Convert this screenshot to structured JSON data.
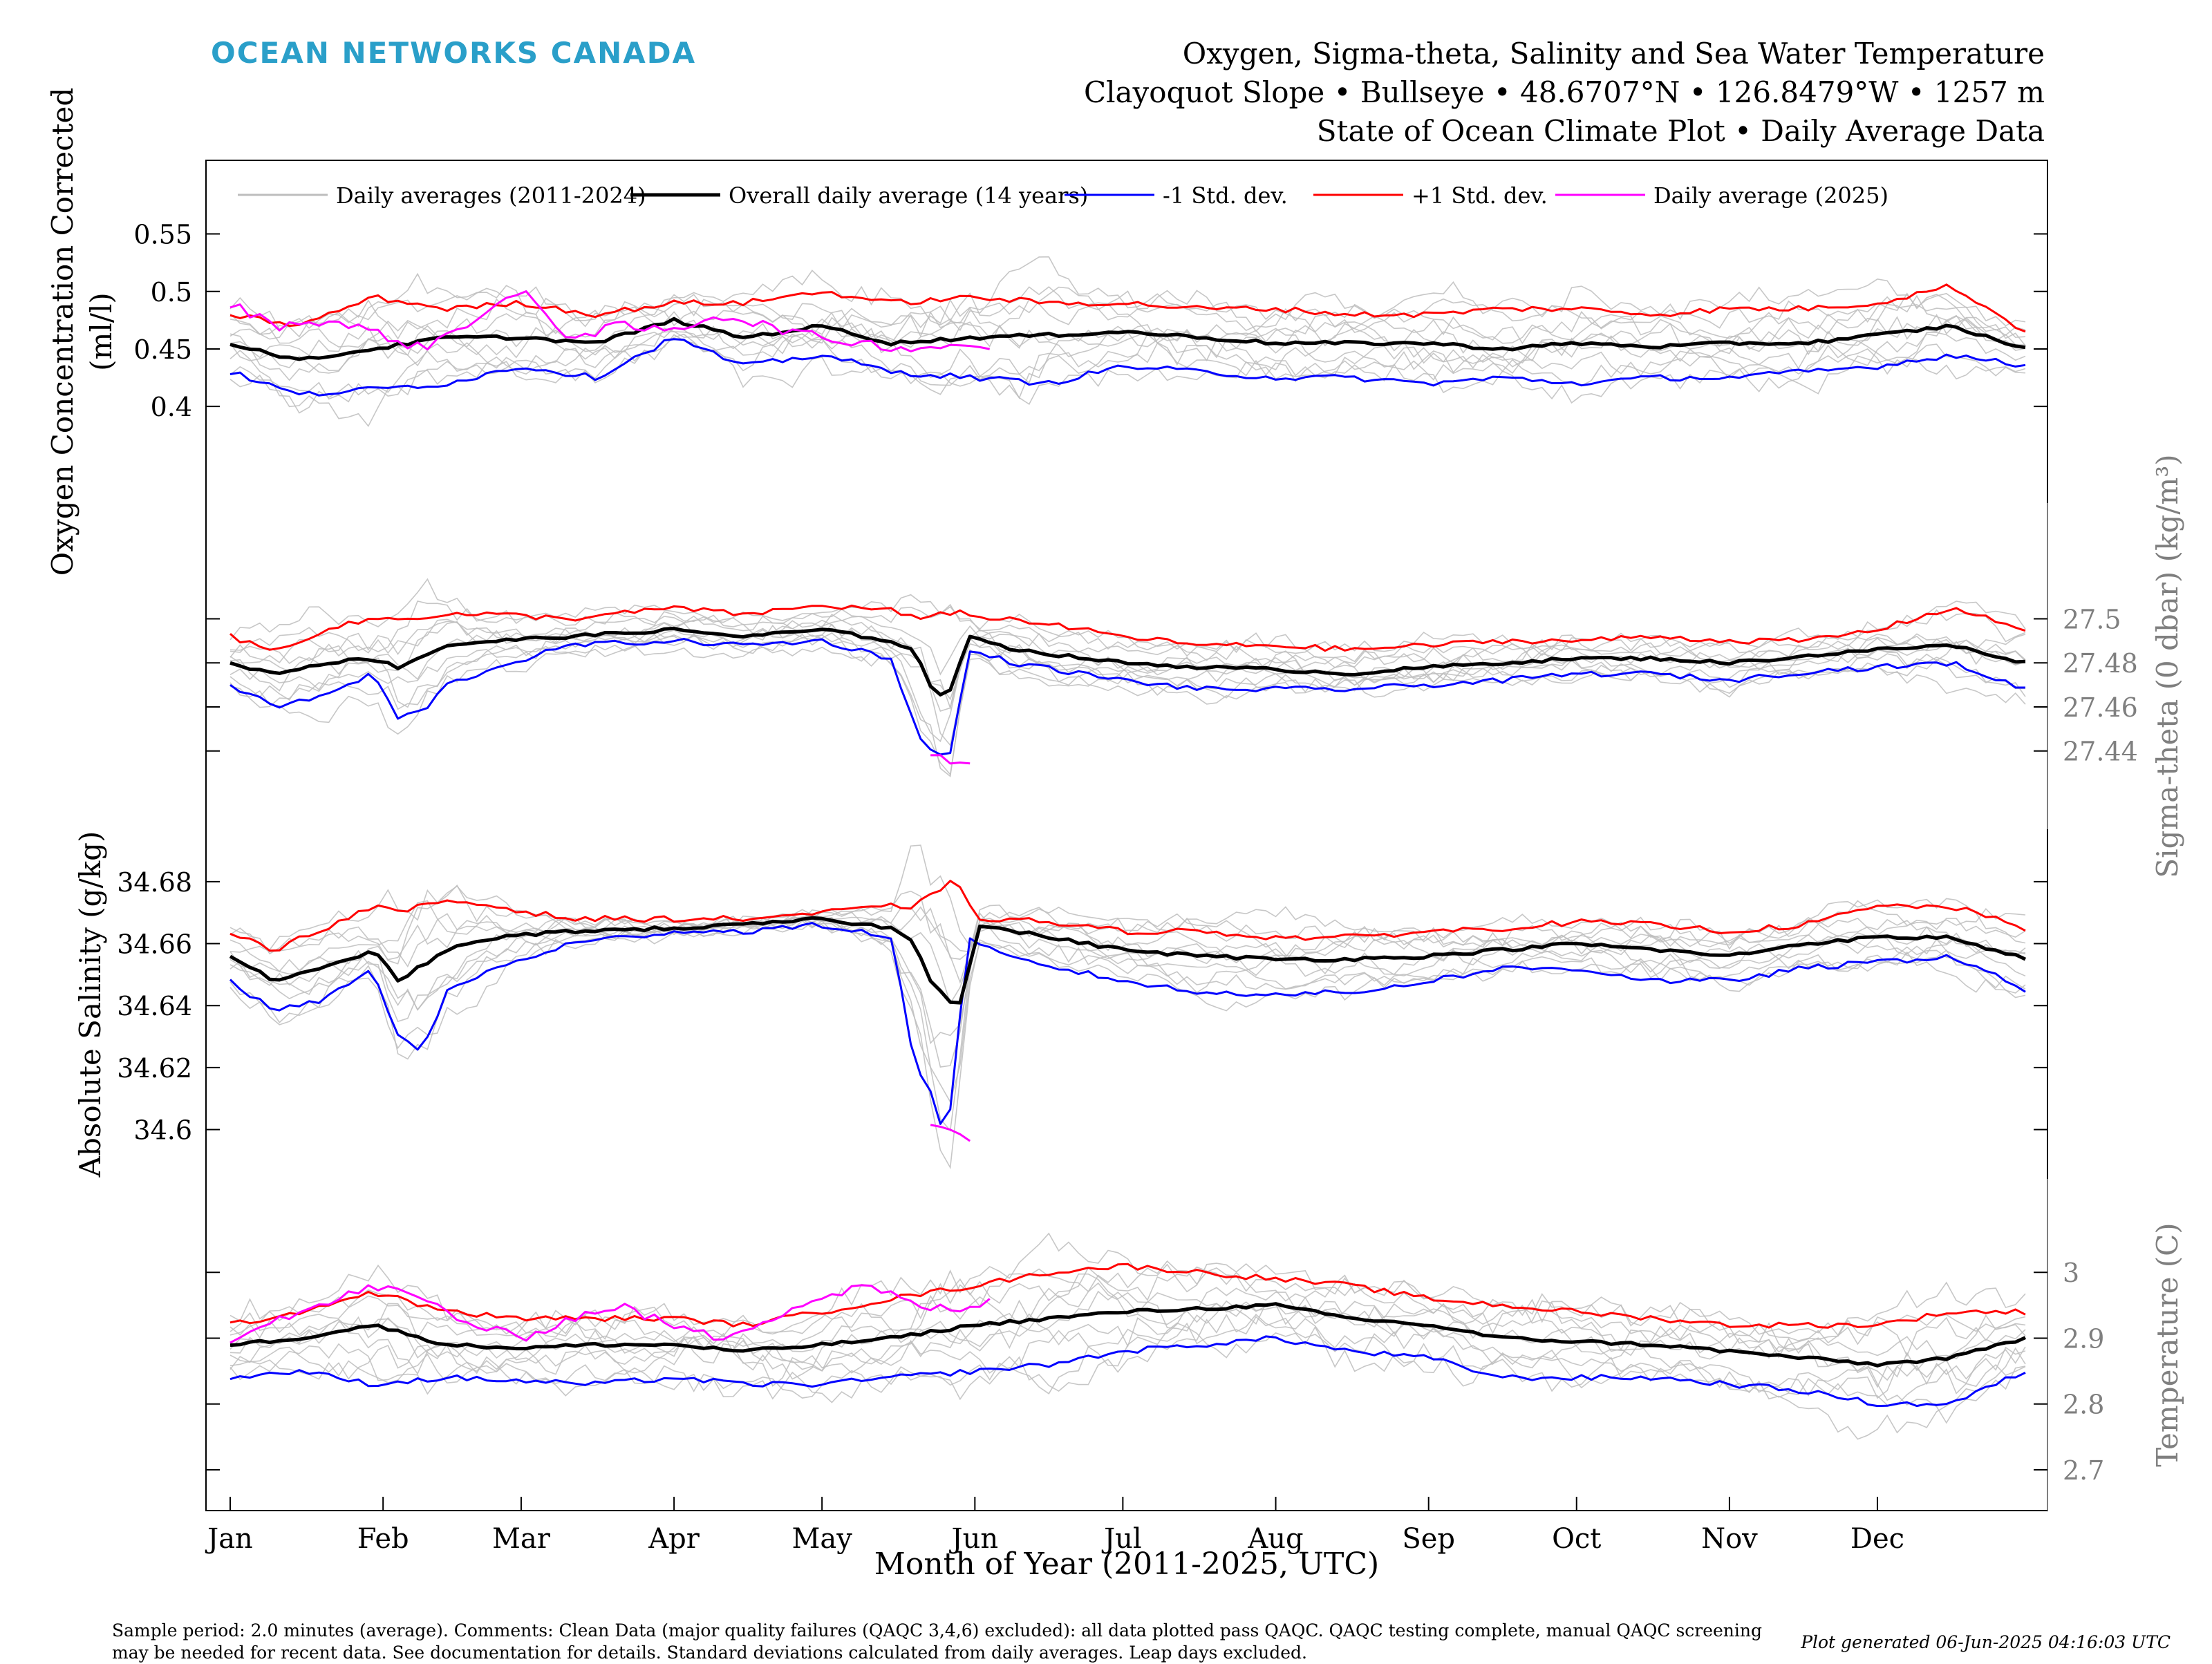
{
  "brand": {
    "logo_text": "OCEAN NETWORKS CANADA",
    "logo_color": "#2a9fc9"
  },
  "header": {
    "title_line1": "Oxygen, Sigma-theta, Salinity and Sea Water Temperature",
    "title_line2": "Clayoquot Slope • Bullseye • 48.6707°N • 126.8479°W • 1257 m",
    "title_line3": "State of Ocean Climate Plot • Daily Average Data"
  },
  "footer": {
    "note": "Sample period: 2.0 minutes (average). Comments: Clean Data (major quality failures (QAQC 3,4,6) excluded): all data plotted pass QAQC. QAQC testing complete, manual QAQC screening may be needed for recent data. See documentation for details. Standard deviations calculated from daily averages. Leap days excluded.",
    "generated": "Plot generated 06-Jun-2025 04:16:03 UTC"
  },
  "chart_data": {
    "type": "line",
    "xlabel": "Month of Year (2011-2025, UTC)",
    "x_ticks": [
      "Jan",
      "Feb",
      "Mar",
      "Apr",
      "May",
      "Jun",
      "Jul",
      "Aug",
      "Sep",
      "Oct",
      "Nov",
      "Dec"
    ],
    "x_tick_days": [
      1,
      32,
      60,
      91,
      121,
      152,
      182,
      213,
      244,
      274,
      305,
      335
    ],
    "xlim": [
      1,
      365
    ],
    "legend": {
      "placement": "top",
      "entries": [
        {
          "label": "Daily averages (2011-2024)",
          "color": "#bdbdbd"
        },
        {
          "label": "Overall daily average (14 years)",
          "color": "#000000"
        },
        {
          "label": "-1 Std. dev.",
          "color": "#0000ff"
        },
        {
          "label": "+1 Std. dev.",
          "color": "#ff0000"
        },
        {
          "label": "Daily average (2025)",
          "color": "#ff00ff"
        }
      ]
    },
    "colors": {
      "history": "#bdbdbd",
      "mean": "#000000",
      "minus_std": "#0000ff",
      "plus_std": "#ff0000",
      "current": "#ff00ff"
    },
    "panels": [
      {
        "name": "oxygen",
        "ylabel": "Oxygen Concentration Corrected (ml/l)",
        "ylabel_lines": [
          "Oxygen Concentration Corrected",
          "(ml/l)"
        ],
        "axis_side": "left",
        "ylim": [
          0.34,
          0.59
        ],
        "yticks": [
          0.4,
          0.45,
          0.5,
          0.55
        ],
        "ytick_labels": [
          "0.4",
          "0.45",
          "0.5",
          "0.55"
        ],
        "mean": {
          "x": [
            1,
            15,
            30,
            45,
            60,
            75,
            91,
            105,
            121,
            135,
            152,
            167,
            182,
            198,
            213,
            228,
            244,
            259,
            274,
            290,
            305,
            320,
            335,
            350,
            365
          ],
          "y": [
            0.455,
            0.44,
            0.45,
            0.46,
            0.46,
            0.455,
            0.475,
            0.46,
            0.47,
            0.455,
            0.46,
            0.462,
            0.465,
            0.46,
            0.455,
            0.455,
            0.455,
            0.45,
            0.455,
            0.452,
            0.455,
            0.455,
            0.462,
            0.47,
            0.45
          ]
        },
        "minus_std": {
          "x": [
            1,
            15,
            30,
            45,
            60,
            75,
            91,
            105,
            121,
            135,
            152,
            167,
            182,
            198,
            213,
            228,
            244,
            259,
            274,
            290,
            305,
            320,
            335,
            350,
            365
          ],
          "y": [
            0.43,
            0.41,
            0.415,
            0.42,
            0.435,
            0.425,
            0.46,
            0.435,
            0.445,
            0.43,
            0.425,
            0.42,
            0.435,
            0.43,
            0.425,
            0.425,
            0.42,
            0.425,
            0.42,
            0.425,
            0.425,
            0.43,
            0.435,
            0.445,
            0.435
          ]
        },
        "plus_std": {
          "x": [
            1,
            15,
            30,
            45,
            60,
            75,
            91,
            105,
            121,
            135,
            152,
            167,
            182,
            198,
            213,
            228,
            244,
            259,
            274,
            290,
            305,
            320,
            335,
            350,
            365
          ],
          "y": [
            0.48,
            0.47,
            0.495,
            0.485,
            0.49,
            0.48,
            0.49,
            0.49,
            0.5,
            0.49,
            0.495,
            0.49,
            0.49,
            0.485,
            0.485,
            0.48,
            0.48,
            0.485,
            0.485,
            0.48,
            0.485,
            0.485,
            0.49,
            0.505,
            0.465
          ]
        },
        "current": {
          "x": [
            1,
            10,
            20,
            30,
            40,
            50,
            60,
            70,
            80,
            90,
            100,
            110,
            120,
            130,
            140,
            150,
            155
          ],
          "y": [
            0.49,
            0.47,
            0.475,
            0.465,
            0.45,
            0.475,
            0.5,
            0.46,
            0.47,
            0.465,
            0.48,
            0.47,
            0.46,
            0.455,
            0.45,
            0.455,
            0.45
          ]
        },
        "history_spread": 0.03
      },
      {
        "name": "sigma-theta",
        "ylabel": "Sigma-theta (0 dbar) (kg/m³)",
        "axis_side": "right",
        "ylim": [
          27.417,
          27.54
        ],
        "yticks": [
          27.44,
          27.46,
          27.48,
          27.5
        ],
        "ytick_labels": [
          "27.44",
          "27.46",
          "27.48",
          "27.5"
        ],
        "mean": {
          "x": [
            1,
            10,
            20,
            30,
            35,
            45,
            55,
            70,
            91,
            105,
            121,
            135,
            140,
            143,
            145,
            148,
            150,
            152,
            160,
            182,
            198,
            213,
            228,
            244,
            259,
            274,
            290,
            305,
            320,
            335,
            350,
            365
          ],
          "y": [
            27.48,
            27.475,
            27.48,
            27.482,
            27.478,
            27.488,
            27.49,
            27.492,
            27.495,
            27.492,
            27.495,
            27.49,
            27.485,
            27.47,
            27.465,
            27.468,
            27.492,
            27.492,
            27.486,
            27.48,
            27.478,
            27.477,
            27.475,
            27.478,
            27.48,
            27.482,
            27.482,
            27.48,
            27.483,
            27.486,
            27.488,
            27.48
          ]
        },
        "minus_std": {
          "x": [
            1,
            10,
            20,
            30,
            35,
            40,
            45,
            55,
            70,
            91,
            105,
            121,
            135,
            140,
            143,
            145,
            148,
            150,
            152,
            160,
            182,
            198,
            213,
            228,
            244,
            259,
            274,
            290,
            305,
            320,
            335,
            350,
            365
          ],
          "y": [
            27.47,
            27.46,
            27.465,
            27.475,
            27.455,
            27.458,
            27.47,
            27.478,
            27.488,
            27.49,
            27.488,
            27.49,
            27.482,
            27.45,
            27.44,
            27.438,
            27.44,
            27.485,
            27.485,
            27.48,
            27.472,
            27.468,
            27.468,
            27.468,
            27.47,
            27.472,
            27.475,
            27.475,
            27.472,
            27.476,
            27.478,
            27.48,
            27.468
          ]
        },
        "plus_std": {
          "x": [
            1,
            10,
            20,
            30,
            35,
            45,
            55,
            70,
            91,
            105,
            121,
            135,
            140,
            143,
            145,
            148,
            150,
            152,
            160,
            182,
            198,
            213,
            228,
            244,
            259,
            274,
            290,
            305,
            320,
            335,
            350,
            365
          ],
          "y": [
            27.492,
            27.485,
            27.495,
            27.5,
            27.5,
            27.502,
            27.502,
            27.5,
            27.505,
            27.502,
            27.506,
            27.504,
            27.5,
            27.5,
            27.502,
            27.503,
            27.505,
            27.5,
            27.5,
            27.492,
            27.488,
            27.488,
            27.486,
            27.488,
            27.49,
            27.49,
            27.492,
            27.49,
            27.49,
            27.495,
            27.505,
            27.495
          ]
        },
        "current": {
          "x": [
            143,
            145,
            148,
            150,
            152
          ],
          "y": [
            27.44,
            27.437,
            27.436,
            27.434,
            27.432
          ]
        },
        "history_spread": 0.012
      },
      {
        "name": "salinity",
        "ylabel": "Absolute Salinity (g/kg)",
        "axis_side": "left",
        "ylim": [
          34.593,
          34.688
        ],
        "yticks": [
          34.6,
          34.62,
          34.64,
          34.66,
          34.68
        ],
        "ytick_labels": [
          "34.6",
          "34.62",
          "34.64",
          "34.66",
          "34.68"
        ],
        "mean": {
          "x": [
            1,
            10,
            20,
            30,
            35,
            45,
            55,
            70,
            91,
            105,
            121,
            135,
            140,
            143,
            145,
            148,
            150,
            152,
            160,
            182,
            198,
            213,
            228,
            244,
            259,
            274,
            290,
            305,
            320,
            335,
            350,
            365
          ],
          "y": [
            34.656,
            34.648,
            34.652,
            34.658,
            34.648,
            34.658,
            34.662,
            34.664,
            34.665,
            34.666,
            34.668,
            34.665,
            34.66,
            34.648,
            34.645,
            34.64,
            34.642,
            34.666,
            34.664,
            34.658,
            34.656,
            34.655,
            34.655,
            34.656,
            34.658,
            34.66,
            34.658,
            34.656,
            34.66,
            34.662,
            34.662,
            34.655
          ]
        },
        "minus_std": {
          "x": [
            1,
            10,
            20,
            30,
            35,
            40,
            45,
            55,
            70,
            91,
            105,
            121,
            135,
            140,
            143,
            145,
            148,
            150,
            152,
            160,
            182,
            198,
            213,
            228,
            244,
            259,
            274,
            290,
            305,
            320,
            335,
            350,
            365
          ],
          "y": [
            34.648,
            34.638,
            34.642,
            34.652,
            34.63,
            34.625,
            34.645,
            34.652,
            34.66,
            34.664,
            34.664,
            34.666,
            34.662,
            34.62,
            34.612,
            34.602,
            34.61,
            34.662,
            34.66,
            34.655,
            34.648,
            34.644,
            34.644,
            34.644,
            34.648,
            34.652,
            34.652,
            34.648,
            34.648,
            34.652,
            34.654,
            34.656,
            34.645
          ]
        },
        "plus_std": {
          "x": [
            1,
            10,
            20,
            30,
            35,
            45,
            55,
            70,
            91,
            105,
            121,
            135,
            140,
            143,
            145,
            148,
            150,
            152,
            160,
            182,
            198,
            213,
            228,
            244,
            259,
            274,
            290,
            305,
            320,
            335,
            350,
            365
          ],
          "y": [
            34.664,
            34.658,
            34.665,
            34.672,
            34.67,
            34.674,
            34.672,
            34.668,
            34.668,
            34.668,
            34.67,
            34.672,
            34.672,
            34.676,
            34.678,
            34.68,
            34.675,
            34.668,
            34.668,
            34.664,
            34.664,
            34.662,
            34.662,
            34.664,
            34.665,
            34.667,
            34.666,
            34.664,
            34.666,
            34.672,
            34.672,
            34.665
          ]
        },
        "current": {
          "x": [
            143,
            145,
            148,
            150,
            152
          ],
          "y": [
            34.603,
            34.601,
            34.598,
            34.597,
            34.595
          ]
        },
        "history_spread": 0.008
      },
      {
        "name": "temperature",
        "ylabel": "Temperature (C)",
        "axis_side": "right",
        "ylim": [
          2.68,
          3.1
        ],
        "yticks": [
          2.7,
          2.8,
          2.9,
          3
        ],
        "ytick_labels": [
          "2.7",
          "2.8",
          "2.9",
          "3"
        ],
        "mean": {
          "x": [
            1,
            15,
            30,
            45,
            60,
            75,
            91,
            105,
            121,
            135,
            152,
            167,
            182,
            198,
            213,
            228,
            244,
            259,
            274,
            290,
            305,
            320,
            335,
            350,
            365
          ],
          "y": [
            2.89,
            2.9,
            2.92,
            2.89,
            2.885,
            2.89,
            2.89,
            2.88,
            2.89,
            2.9,
            2.92,
            2.93,
            2.94,
            2.945,
            2.95,
            2.93,
            2.92,
            2.9,
            2.895,
            2.89,
            2.88,
            2.87,
            2.86,
            2.87,
            2.9
          ]
        },
        "minus_std": {
          "x": [
            1,
            15,
            30,
            45,
            60,
            75,
            91,
            105,
            121,
            135,
            152,
            167,
            182,
            198,
            213,
            228,
            244,
            259,
            274,
            290,
            305,
            320,
            335,
            350,
            365
          ],
          "y": [
            2.84,
            2.85,
            2.83,
            2.84,
            2.835,
            2.83,
            2.84,
            2.83,
            2.83,
            2.84,
            2.85,
            2.86,
            2.88,
            2.89,
            2.9,
            2.88,
            2.87,
            2.84,
            2.84,
            2.84,
            2.83,
            2.82,
            2.8,
            2.8,
            2.85
          ]
        },
        "plus_std": {
          "x": [
            1,
            15,
            30,
            45,
            60,
            75,
            91,
            105,
            121,
            135,
            152,
            167,
            182,
            198,
            213,
            228,
            244,
            259,
            274,
            290,
            305,
            320,
            335,
            350,
            365
          ],
          "y": [
            2.92,
            2.94,
            2.97,
            2.94,
            2.93,
            2.93,
            2.93,
            2.92,
            2.94,
            2.96,
            2.98,
            3.0,
            3.01,
            3.0,
            2.99,
            2.98,
            2.96,
            2.95,
            2.94,
            2.93,
            2.92,
            2.92,
            2.92,
            2.94,
            2.94
          ]
        },
        "current": {
          "x": [
            1,
            10,
            20,
            30,
            40,
            50,
            60,
            70,
            80,
            90,
            100,
            110,
            120,
            130,
            140,
            150,
            155
          ],
          "y": [
            2.9,
            2.93,
            2.95,
            2.98,
            2.96,
            2.92,
            2.9,
            2.93,
            2.95,
            2.92,
            2.9,
            2.93,
            2.96,
            2.98,
            2.95,
            2.94,
            2.96
          ]
        },
        "history_spread": 0.06
      }
    ]
  }
}
